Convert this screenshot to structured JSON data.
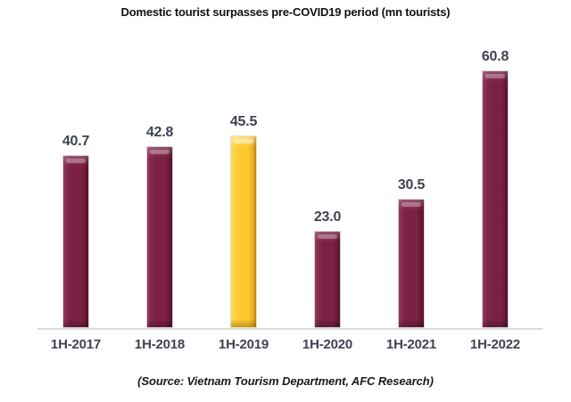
{
  "page": {
    "title": "Domestic tourist surpasses pre-COVID19 period (mn tourists)",
    "source_note": "(Source: Vietnam Tourism Department, AFC Research)"
  },
  "chart_data": {
    "type": "bar",
    "title": "Domestic tourist surpasses pre-COVID19 period (mn tourists)",
    "categories": [
      "1H-2017",
      "1H-2018",
      "1H-2019",
      "1H-2020",
      "1H-2021",
      "1H-2022"
    ],
    "values": [
      40.7,
      42.8,
      45.5,
      23.0,
      30.5,
      60.8
    ],
    "value_labels": [
      "40.7",
      "42.8",
      "45.5",
      "23.0",
      "30.5",
      "60.8"
    ],
    "highlight_index": 2,
    "xlabel": "",
    "ylabel": "",
    "ylim": [
      0,
      62
    ],
    "grid": false,
    "legend": false,
    "source": "(Source: Vietnam Tourism Department, AFC Research)",
    "colors": {
      "bar": "#7b2144",
      "highlight_bar": "#fec92f",
      "value_label": "#3f4255",
      "axis_label": "#3f4255",
      "axis_line": "#dbdbdb",
      "title": "#111111",
      "background": "#ffffff"
    }
  }
}
